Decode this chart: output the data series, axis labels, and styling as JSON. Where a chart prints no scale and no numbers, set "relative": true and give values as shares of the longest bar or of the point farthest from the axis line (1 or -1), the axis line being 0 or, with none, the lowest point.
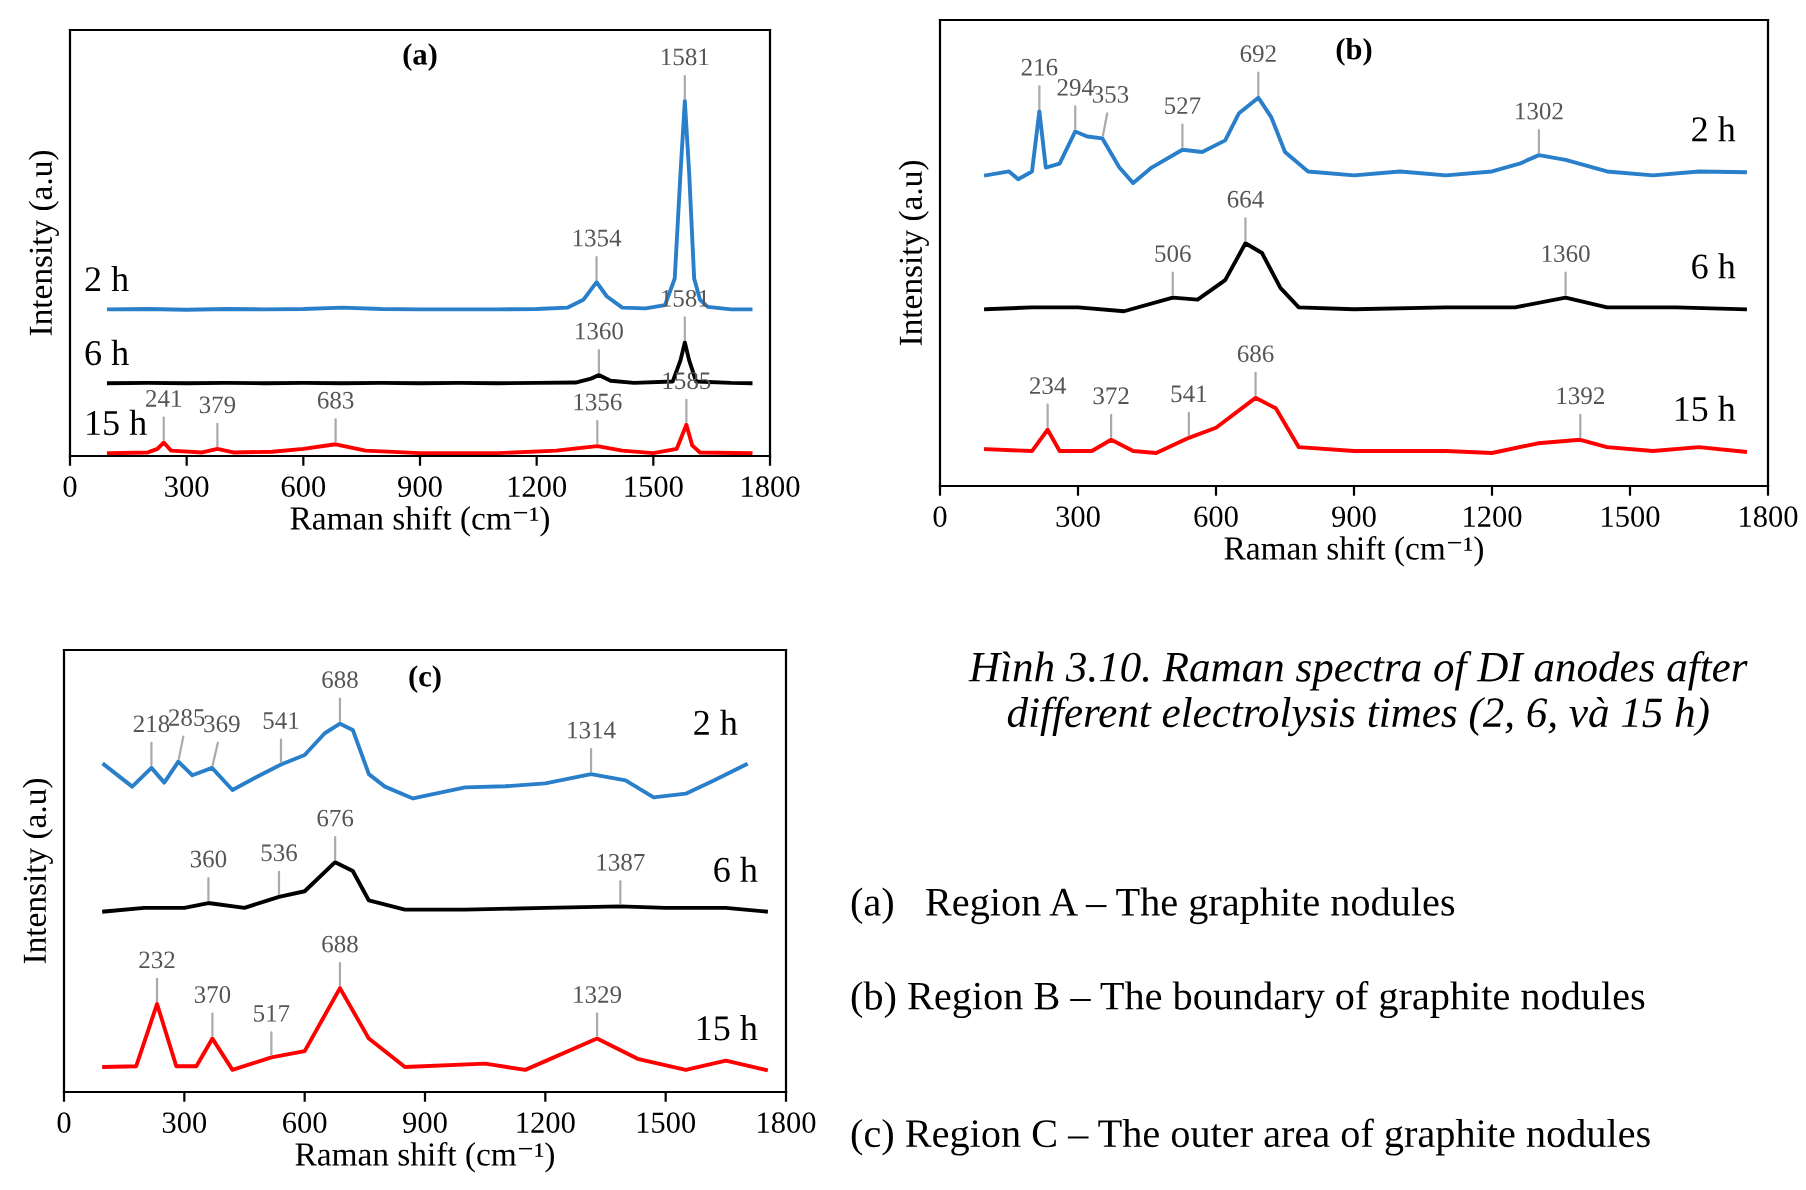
{
  "chart_data": [
    {
      "type": "line",
      "title": "(a)",
      "xlabel": "Raman shift (cm⁻¹)",
      "ylabel": "Intensity (a.u)",
      "relative": true,
      "xlim": [
        0,
        1800
      ],
      "xticks": [
        0,
        300,
        600,
        900,
        1200,
        1500,
        1800
      ],
      "tick_labels": "x",
      "series": [
        {
          "name": "2 h",
          "color": "#2a7fca",
          "x": [
            100,
            200,
            300,
            400,
            500,
            600,
            700,
            800,
            900,
            1000,
            1100,
            1200,
            1280,
            1320,
            1354,
            1380,
            1420,
            1480,
            1530,
            1555,
            1570,
            1581,
            1592,
            1605,
            1620,
            1640,
            1700,
            1750
          ],
          "values": [
            0.413,
            0.414,
            0.412,
            0.414,
            0.413,
            0.414,
            0.418,
            0.414,
            0.413,
            0.413,
            0.413,
            0.414,
            0.418,
            0.44,
            0.49,
            0.45,
            0.418,
            0.416,
            0.425,
            0.5,
            0.8,
            1,
            0.8,
            0.5,
            0.44,
            0.42,
            0.413,
            0.413
          ]
        },
        {
          "name": "6 h",
          "color": "#000000",
          "x": [
            100,
            200,
            300,
            400,
            500,
            600,
            700,
            800,
            900,
            1000,
            1100,
            1200,
            1300,
            1340,
            1360,
            1390,
            1450,
            1550,
            1570,
            1581,
            1592,
            1610,
            1700,
            1750
          ],
          "values": [
            0.205,
            0.206,
            0.205,
            0.206,
            0.205,
            0.206,
            0.205,
            0.206,
            0.205,
            0.206,
            0.205,
            0.206,
            0.207,
            0.218,
            0.228,
            0.212,
            0.206,
            0.21,
            0.27,
            0.32,
            0.27,
            0.21,
            0.206,
            0.205
          ]
        },
        {
          "name": "15 h",
          "color": "#ff0000",
          "x": [
            100,
            200,
            225,
            241,
            260,
            340,
            379,
            420,
            520,
            600,
            683,
            760,
            900,
            1100,
            1250,
            1356,
            1420,
            1500,
            1560,
            1585,
            1600,
            1620,
            1750
          ],
          "values": [
            0.008,
            0.01,
            0.02,
            0.038,
            0.015,
            0.01,
            0.02,
            0.01,
            0.012,
            0.02,
            0.033,
            0.015,
            0.008,
            0.008,
            0.015,
            0.028,
            0.015,
            0.008,
            0.02,
            0.088,
            0.03,
            0.01,
            0.008
          ]
        }
      ],
      "annotations": [
        {
          "text": "1581",
          "x": 1581,
          "y": 1
        },
        {
          "text": "1354",
          "x": 1354,
          "y": 0.49
        },
        {
          "text": "1360",
          "x": 1360,
          "y": 0.228
        },
        {
          "text": "1581",
          "x": 1581,
          "y": 0.32
        },
        {
          "text": "241",
          "x": 241,
          "y": 0.038
        },
        {
          "text": "379",
          "x": 379,
          "y": 0.02
        },
        {
          "text": "683",
          "x": 683,
          "y": 0.033
        },
        {
          "text": "1356",
          "x": 1356,
          "y": 0.028
        },
        {
          "text": "1585",
          "x": 1585,
          "y": 0.088
        }
      ]
    },
    {
      "type": "line",
      "title": "(b)",
      "xlabel": "Raman shift (cm⁻¹)",
      "ylabel": "Intensity (a.u)",
      "relative": true,
      "xlim": [
        0,
        1800
      ],
      "xticks": [
        0,
        300,
        600,
        900,
        1200,
        1500,
        1800
      ],
      "tick_labels": "x",
      "series": [
        {
          "name": "2 h",
          "color": "#2a7fca",
          "x": [
            100,
            150,
            170,
            200,
            216,
            230,
            260,
            294,
            320,
            353,
            390,
            420,
            460,
            527,
            570,
            620,
            650,
            692,
            720,
            750,
            800,
            900,
            1000,
            1100,
            1200,
            1260,
            1302,
            1360,
            1450,
            1550,
            1650,
            1750
          ],
          "values": [
            0.8,
            0.81,
            0.79,
            0.81,
            0.965,
            0.82,
            0.83,
            0.913,
            0.9,
            0.895,
            0.82,
            0.78,
            0.82,
            0.866,
            0.86,
            0.89,
            0.96,
            1,
            0.95,
            0.86,
            0.81,
            0.8,
            0.81,
            0.8,
            0.81,
            0.83,
            0.852,
            0.84,
            0.81,
            0.8,
            0.81,
            0.808
          ]
        },
        {
          "name": "6 h",
          "color": "#000000",
          "x": [
            100,
            200,
            300,
            400,
            506,
            560,
            620,
            664,
            700,
            740,
            780,
            900,
            1100,
            1250,
            1360,
            1450,
            1600,
            1750
          ],
          "values": [
            0.455,
            0.46,
            0.46,
            0.45,
            0.485,
            0.48,
            0.53,
            0.625,
            0.6,
            0.51,
            0.46,
            0.455,
            0.46,
            0.46,
            0.485,
            0.46,
            0.46,
            0.455
          ]
        },
        {
          "name": "15 h",
          "color": "#ff0000",
          "x": [
            100,
            200,
            234,
            260,
            330,
            372,
            420,
            470,
            541,
            600,
            686,
            730,
            780,
            900,
            1100,
            1200,
            1300,
            1392,
            1450,
            1550,
            1650,
            1750
          ],
          "values": [
            0.095,
            0.09,
            0.145,
            0.09,
            0.09,
            0.119,
            0.09,
            0.085,
            0.124,
            0.15,
            0.227,
            0.2,
            0.1,
            0.09,
            0.09,
            0.085,
            0.11,
            0.119,
            0.1,
            0.09,
            0.1,
            0.088
          ]
        }
      ],
      "annotations": [
        {
          "text": "216",
          "x": 216,
          "y": 0.965
        },
        {
          "text": "294",
          "x": 294,
          "y": 0.913
        },
        {
          "text": "353",
          "x": 353,
          "y": 0.895
        },
        {
          "text": "527",
          "x": 527,
          "y": 0.866
        },
        {
          "text": "692",
          "x": 692,
          "y": 1
        },
        {
          "text": "1302",
          "x": 1302,
          "y": 0.852
        },
        {
          "text": "506",
          "x": 506,
          "y": 0.485
        },
        {
          "text": "664",
          "x": 664,
          "y": 0.625
        },
        {
          "text": "1360",
          "x": 1360,
          "y": 0.485
        },
        {
          "text": "234",
          "x": 234,
          "y": 0.145
        },
        {
          "text": "372",
          "x": 372,
          "y": 0.119
        },
        {
          "text": "541",
          "x": 541,
          "y": 0.124
        },
        {
          "text": "686",
          "x": 686,
          "y": 0.227
        },
        {
          "text": "1392",
          "x": 1392,
          "y": 0.119
        }
      ]
    },
    {
      "type": "line",
      "title": "(c)",
      "xlabel": "Raman shift (cm⁻¹)",
      "ylabel": "Intensity (a.u)",
      "relative": true,
      "xlim": [
        0,
        1800
      ],
      "xticks": [
        0,
        300,
        600,
        900,
        1200,
        1500,
        1800
      ],
      "tick_labels": "x",
      "series": [
        {
          "name": "2 h",
          "color": "#2a7fca",
          "x": [
            100,
            170,
            218,
            250,
            285,
            320,
            369,
            420,
            480,
            541,
            600,
            650,
            688,
            720,
            760,
            800,
            870,
            1000,
            1100,
            1200,
            1314,
            1400,
            1470,
            1550,
            1620,
            1700
          ],
          "values": [
            0.889,
            0.829,
            0.88,
            0.84,
            0.897,
            0.86,
            0.88,
            0.82,
            0.855,
            0.889,
            0.915,
            0.974,
            1,
            0.983,
            0.863,
            0.829,
            0.797,
            0.827,
            0.83,
            0.838,
            0.863,
            0.846,
            0.8,
            0.81,
            0.846,
            0.889
          ]
        },
        {
          "name": "6 h",
          "color": "#000000",
          "x": [
            100,
            200,
            300,
            360,
            450,
            536,
            600,
            676,
            720,
            760,
            850,
            1000,
            1200,
            1387,
            1500,
            1650,
            1750
          ],
          "values": [
            0.49,
            0.5,
            0.5,
            0.513,
            0.5,
            0.53,
            0.545,
            0.624,
            0.6,
            0.52,
            0.495,
            0.495,
            0.5,
            0.504,
            0.5,
            0.5,
            0.49
          ]
        },
        {
          "name": "15 h",
          "color": "#ff0000",
          "x": [
            100,
            180,
            232,
            280,
            330,
            370,
            420,
            517,
            600,
            688,
            760,
            850,
            1050,
            1150,
            1329,
            1430,
            1550,
            1650,
            1750
          ],
          "values": [
            0.068,
            0.07,
            0.239,
            0.07,
            0.07,
            0.145,
            0.06,
            0.094,
            0.111,
            0.282,
            0.145,
            0.068,
            0.077,
            0.06,
            0.145,
            0.09,
            0.06,
            0.085,
            0.06
          ]
        }
      ],
      "annotations": [
        {
          "text": "218",
          "x": 218,
          "y": 0.88
        },
        {
          "text": "285",
          "x": 285,
          "y": 0.897
        },
        {
          "text": "369",
          "x": 369,
          "y": 0.88
        },
        {
          "text": "541",
          "x": 541,
          "y": 0.889
        },
        {
          "text": "688",
          "x": 688,
          "y": 1
        },
        {
          "text": "1314",
          "x": 1314,
          "y": 0.863
        },
        {
          "text": "360",
          "x": 360,
          "y": 0.513
        },
        {
          "text": "536",
          "x": 536,
          "y": 0.53
        },
        {
          "text": "676",
          "x": 676,
          "y": 0.624
        },
        {
          "text": "1387",
          "x": 1387,
          "y": 0.504
        },
        {
          "text": "232",
          "x": 232,
          "y": 0.239
        },
        {
          "text": "370",
          "x": 370,
          "y": 0.145
        },
        {
          "text": "517",
          "x": 517,
          "y": 0.094
        },
        {
          "text": "688",
          "x": 688,
          "y": 0.282
        },
        {
          "text": "1329",
          "x": 1329,
          "y": 0.145
        }
      ]
    },
    {
      "type": "other",
      "title": "Hình 3.10.",
      "subtitle": "Raman spectra of DI anodes after different electrolysis times (2, 6, và 15 h)",
      "annotations": [
        "(a)   Region A – The graphite nodules",
        "(b) Region B – The boundary of graphite nodules",
        "(c) Region C – The outer area of graphite nodules"
      ]
    }
  ]
}
